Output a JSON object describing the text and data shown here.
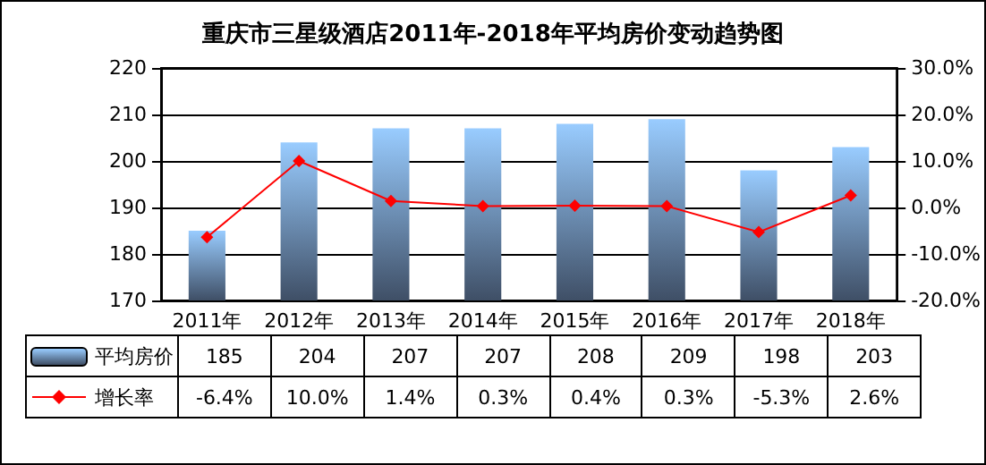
{
  "chart_data": {
    "type": "bar",
    "title": "重庆市三星级酒店2011年-2018年平均房价变动趋势图",
    "categories": [
      "2011年",
      "2012年",
      "2013年",
      "2014年",
      "2015年",
      "2016年",
      "2017年",
      "2018年"
    ],
    "series": [
      {
        "name": "平均房价",
        "color": "#99ccff",
        "values": [
          185,
          204,
          207,
          207,
          208,
          209,
          198,
          203
        ],
        "value_labels": [
          "185",
          "204",
          "207",
          "207",
          "208",
          "209",
          "198",
          "203"
        ]
      },
      {
        "name": "增长率",
        "type": "line",
        "axis": "y2",
        "color": "#ff0000",
        "marker": "diamond",
        "values": [
          -6.4,
          10.0,
          1.4,
          0.3,
          0.4,
          0.3,
          -5.3,
          2.6
        ],
        "value_labels": [
          "-6.4%",
          "10.0%",
          "1.4%",
          "0.3%",
          "0.4%",
          "0.3%",
          "-5.3%",
          "2.6%"
        ]
      }
    ],
    "ylim": [
      170,
      220
    ],
    "yticks": [
      170,
      180,
      190,
      200,
      210,
      220
    ],
    "y2lim": [
      -20,
      30
    ],
    "y2ticks": [
      {
        "value": -20,
        "label": "-20.0%"
      },
      {
        "value": -10,
        "label": "-10.0%"
      },
      {
        "value": 0,
        "label": "0.0%"
      },
      {
        "value": 10,
        "label": "10.0%"
      },
      {
        "value": 20,
        "label": "20.0%"
      },
      {
        "value": 30,
        "label": "30.0%"
      }
    ],
    "grid": "y",
    "legend": "bottom"
  }
}
